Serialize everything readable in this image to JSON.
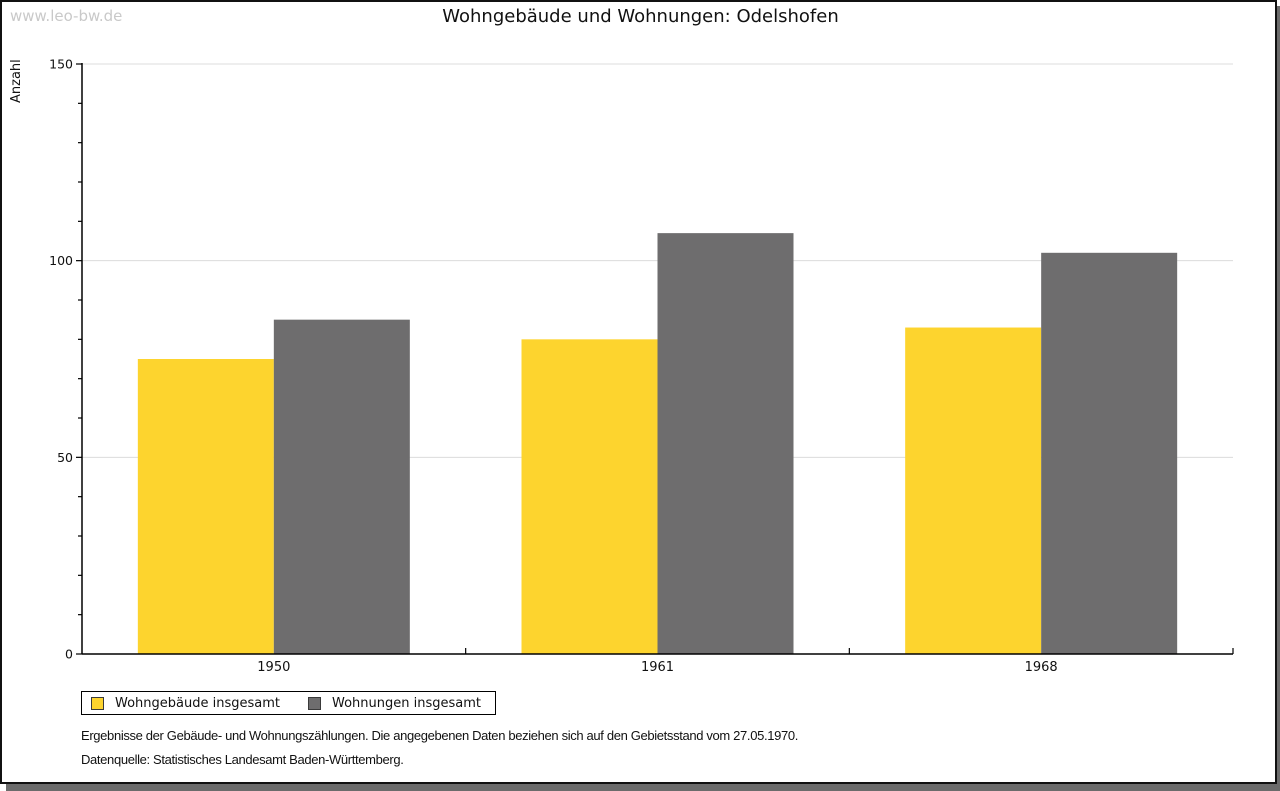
{
  "watermark": "www.leo-bw.de",
  "title": "Wohngebäude und Wohnungen: Odelshofen",
  "chart_data": {
    "type": "bar",
    "title": "Wohngebäude und Wohnungen: Odelshofen",
    "categories": [
      "1950",
      "1961",
      "1968"
    ],
    "series": [
      {
        "name": "Wohngebäude insgesamt",
        "color": "#FDD42E",
        "values": [
          75,
          80,
          83
        ]
      },
      {
        "name": "Wohnungen insgesamt",
        "color": "#6E6D6E",
        "values": [
          85,
          107,
          102
        ]
      }
    ],
    "xlabel": "",
    "ylabel": "Anzahl",
    "ylim": [
      0,
      150
    ],
    "y_major_step": 50,
    "y_minor_step": 10,
    "grid": "horizontal-major",
    "grid_color": "#dcdcdc",
    "axis_color": "#000000",
    "text_color": "#111111",
    "legend_position": "bottom-left"
  },
  "footnotes": [
    "Ergebnisse der Gebäude- und Wohnungszählungen. Die angegebenen Daten beziehen sich auf den Gebietsstand vom 27.05.1970.",
    "Datenquelle: Statistisches Landesamt Baden-Württemberg."
  ],
  "frame": {
    "shadow_color": "#6b6b6b",
    "border_color": "#111111",
    "watermark_color": "#c9c9c9"
  }
}
